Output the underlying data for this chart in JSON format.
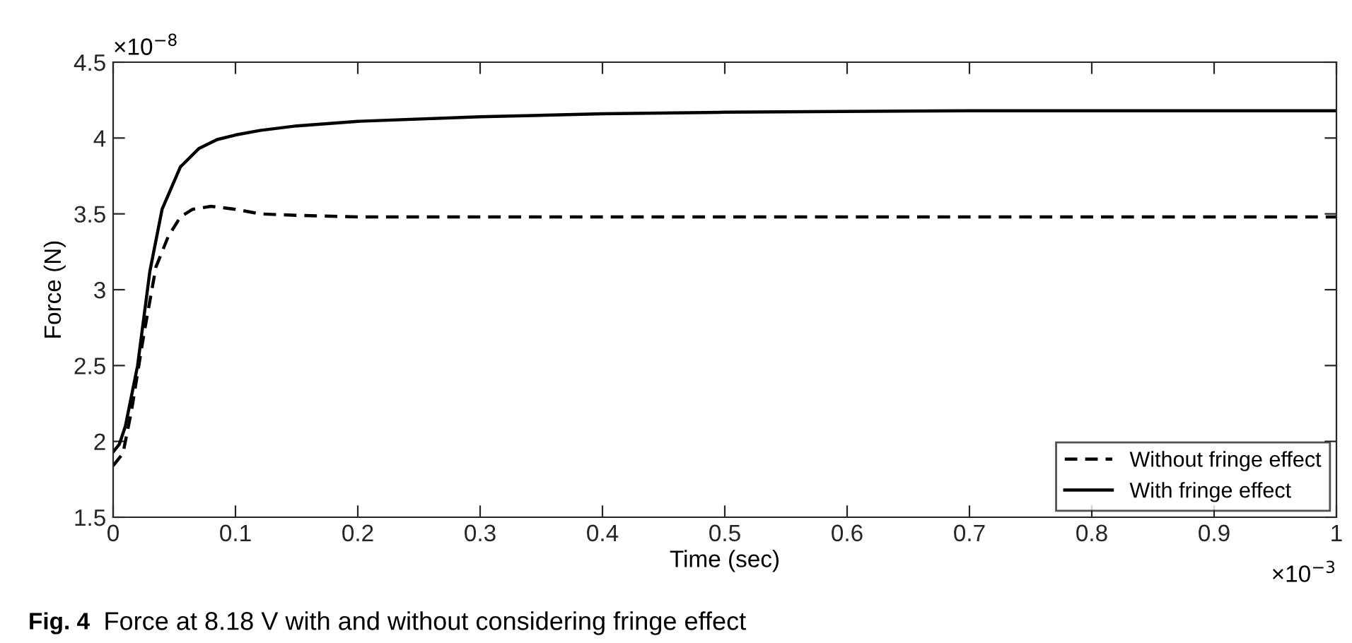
{
  "chart_data": {
    "type": "line",
    "xlabel": "Time (sec)",
    "ylabel": "Force (N)",
    "xlim": [
      0,
      1
    ],
    "ylim": [
      1.5,
      4.5
    ],
    "xticks": [
      0,
      0.1,
      0.2,
      0.3,
      0.4,
      0.5,
      0.6,
      0.7,
      0.8,
      0.9,
      1
    ],
    "yticks": [
      1.5,
      2,
      2.5,
      3,
      3.5,
      4,
      4.5
    ],
    "grid": false,
    "legend": "bottom right",
    "marker": "none",
    "series": [
      {
        "name": "Without fringe effect",
        "color": "#000000",
        "line_style": "dashed",
        "x": [
          0,
          0.008,
          0.015,
          0.025,
          0.035,
          0.045,
          0.055,
          0.065,
          0.08,
          0.1,
          0.12,
          0.15,
          0.2,
          0.5,
          1.0
        ],
        "values": [
          1.84,
          1.92,
          2.2,
          2.7,
          3.15,
          3.35,
          3.48,
          3.53,
          3.55,
          3.53,
          3.5,
          3.49,
          3.48,
          3.48,
          3.48
        ]
      },
      {
        "name": "With fringe effect",
        "color": "#000000",
        "line_style": "solid",
        "x": [
          0,
          0.005,
          0.01,
          0.02,
          0.03,
          0.04,
          0.055,
          0.07,
          0.085,
          0.1,
          0.12,
          0.15,
          0.2,
          0.3,
          0.4,
          0.5,
          0.7,
          1.0
        ],
        "values": [
          1.93,
          1.98,
          2.1,
          2.5,
          3.12,
          3.53,
          3.81,
          3.93,
          3.99,
          4.02,
          4.05,
          4.08,
          4.11,
          4.14,
          4.16,
          4.17,
          4.18,
          4.18
        ]
      }
    ],
    "annotations": [
      "×10$^{−8}$",
      "×10$^{−3}$",
      "Fig. 4",
      "Force at 8.18 V with and without considering fringe effect"
    ]
  }
}
